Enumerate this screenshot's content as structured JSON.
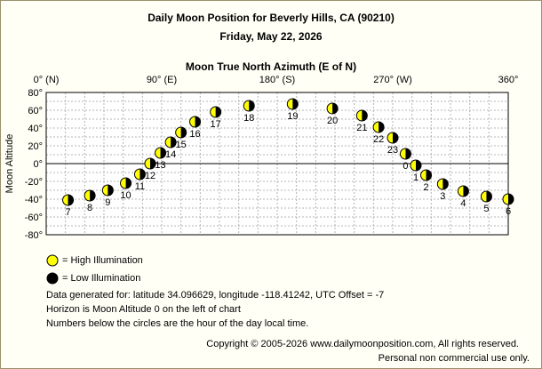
{
  "header": {
    "title": "Daily Moon Position for Beverly Hills, CA (90210)",
    "date": "Friday, May 22, 2026",
    "axis_title": "Moon True North Azimuth (E of N)"
  },
  "chart_data": {
    "type": "scatter",
    "title": "Daily Moon Position for Beverly Hills, CA (90210)",
    "subtitle": "Friday, May 22, 2026",
    "xlabel": "Moon True North Azimuth (E of N)",
    "ylabel": "Moon Altitude",
    "xlim": [
      0,
      360
    ],
    "ylim": [
      -80,
      80
    ],
    "x_ticks": [
      {
        "value": 0,
        "label": "0° (N)"
      },
      {
        "value": 90,
        "label": "90° (E)"
      },
      {
        "value": 180,
        "label": "180° (S)"
      },
      {
        "value": 270,
        "label": "270° (W)"
      },
      {
        "value": 360,
        "label": "360°"
      }
    ],
    "y_ticks": [
      {
        "value": 80,
        "label": "80°"
      },
      {
        "value": 60,
        "label": "60°"
      },
      {
        "value": 40,
        "label": "40°"
      },
      {
        "value": 20,
        "label": "20°"
      },
      {
        "value": 0,
        "label": "0°"
      },
      {
        "value": -20,
        "label": "-20°"
      },
      {
        "value": -40,
        "label": "-40°"
      },
      {
        "value": -60,
        "label": "-60°"
      },
      {
        "value": -80,
        "label": "-80°"
      }
    ],
    "grid": true,
    "points": [
      {
        "hour": "7",
        "azimuth": 17,
        "altitude": -41
      },
      {
        "hour": "8",
        "azimuth": 34,
        "altitude": -36
      },
      {
        "hour": "9",
        "azimuth": 48,
        "altitude": -30
      },
      {
        "hour": "10",
        "azimuth": 62,
        "altitude": -22
      },
      {
        "hour": "11",
        "azimuth": 73,
        "altitude": -12
      },
      {
        "hour": "12",
        "azimuth": 81,
        "altitude": 0
      },
      {
        "hour": "13",
        "azimuth": 89,
        "altitude": 12
      },
      {
        "hour": "14",
        "azimuth": 97,
        "altitude": 24
      },
      {
        "hour": "15",
        "azimuth": 105,
        "altitude": 35
      },
      {
        "hour": "16",
        "azimuth": 116,
        "altitude": 47
      },
      {
        "hour": "17",
        "azimuth": 132,
        "altitude": 58
      },
      {
        "hour": "18",
        "azimuth": 158,
        "altitude": 65
      },
      {
        "hour": "19",
        "azimuth": 192,
        "altitude": 67
      },
      {
        "hour": "20",
        "azimuth": 223,
        "altitude": 62
      },
      {
        "hour": "21",
        "azimuth": 246,
        "altitude": 54
      },
      {
        "hour": "22",
        "azimuth": 259,
        "altitude": 41
      },
      {
        "hour": "23",
        "azimuth": 270,
        "altitude": 29
      },
      {
        "hour": "0",
        "azimuth": 280,
        "altitude": 11
      },
      {
        "hour": "1",
        "azimuth": 288,
        "altitude": -2
      },
      {
        "hour": "2",
        "azimuth": 296,
        "altitude": -13
      },
      {
        "hour": "3",
        "azimuth": 309,
        "altitude": -23
      },
      {
        "hour": "4",
        "azimuth": 325,
        "altitude": -31
      },
      {
        "hour": "5",
        "azimuth": 343,
        "altitude": -37
      },
      {
        "hour": "6",
        "azimuth": 360,
        "altitude": -40
      }
    ],
    "colors": {
      "high": "#ffff00",
      "low": "#000000",
      "grid": "#b4b4b4",
      "horizon": "#000000"
    }
  },
  "legend": {
    "high_label": "= High Illumination",
    "low_label": "= Low Illumination"
  },
  "info": {
    "line1": "Data generated for: latitude 34.096629, longitude -118.41242, UTC Offset = -7",
    "line2": "Horizon is Moon Altitude 0 on the left of chart",
    "line3": "Numbers below the circles are the hour of the day local time."
  },
  "footer": {
    "copyright": "Copyright © 2005-2026 www.dailymoonposition.com, All rights reserved.",
    "notice": "Personal non commercial use only."
  }
}
